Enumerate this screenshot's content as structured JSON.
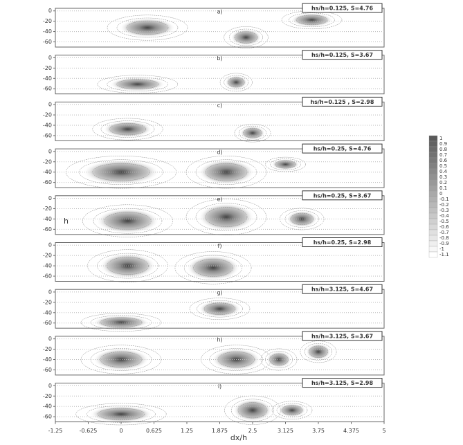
{
  "chart_data": [
    {
      "type": "contour",
      "label": "a)",
      "title": "hs/h=0.125, S=4.76",
      "xlim": [
        -1.25,
        5
      ],
      "ylim": [
        -70,
        5
      ],
      "yticks": [
        0,
        -20,
        -40,
        -60
      ]
    },
    {
      "type": "contour",
      "label": "b)",
      "title": "hs/h=0.125, S=3.67",
      "xlim": [
        -1.25,
        5
      ],
      "ylim": [
        -70,
        5
      ],
      "yticks": [
        0,
        -20,
        -40,
        -60
      ]
    },
    {
      "type": "contour",
      "label": "c)",
      "title": "hs/h=0.125 , S=2.98",
      "xlim": [
        -1.25,
        5
      ],
      "ylim": [
        -70,
        5
      ],
      "yticks": [
        0,
        -20,
        -40,
        -60
      ]
    },
    {
      "type": "contour",
      "label": "d)",
      "title": "hs/h=0.25, S=4.76",
      "xlim": [
        -1.25,
        5
      ],
      "ylim": [
        -70,
        5
      ],
      "yticks": [
        0,
        -20,
        -40,
        -60
      ]
    },
    {
      "type": "contour",
      "label": "e)",
      "title": "hs/h=0.25, S=3.67",
      "xlim": [
        -1.25,
        5
      ],
      "ylim": [
        -70,
        5
      ],
      "yticks": [
        0,
        -20,
        -40,
        -60
      ]
    },
    {
      "type": "contour",
      "label": "f)",
      "title": "hs/h=0.25, S=2.98",
      "xlim": [
        -1.25,
        5
      ],
      "ylim": [
        -70,
        5
      ],
      "yticks": [
        0,
        -20,
        -40,
        -60
      ]
    },
    {
      "type": "contour",
      "label": "g)",
      "title": "hs/h=3.125, S=4.67",
      "xlim": [
        -1.25,
        5
      ],
      "ylim": [
        -70,
        5
      ],
      "yticks": [
        0,
        -20,
        -40,
        -60
      ]
    },
    {
      "type": "contour",
      "label": "h)",
      "title": "hs/h=3.125, S=3.67",
      "xlim": [
        -1.25,
        5
      ],
      "ylim": [
        -70,
        5
      ],
      "yticks": [
        0,
        -20,
        -40,
        -60
      ]
    },
    {
      "type": "contour",
      "label": "i)",
      "title": "hs/h=3.125, S=2.98",
      "xlim": [
        -1.25,
        5
      ],
      "ylim": [
        -70,
        5
      ],
      "yticks": [
        0,
        -20,
        -40,
        -60
      ],
      "xticks": [
        -1.25,
        -0.625,
        0,
        0.625,
        1.25,
        1.875,
        2.5,
        3.125,
        3.75,
        4.375,
        5
      ]
    }
  ],
  "xlabel": "dx/h",
  "ylabel": "h",
  "colorbar": {
    "ticks": [
      1,
      0.9,
      0.8,
      0.7,
      0.6,
      0.5,
      0.4,
      0.3,
      0.2,
      0.1,
      0,
      -0.1,
      -0.2,
      -0.3,
      -0.4,
      -0.5,
      -0.6,
      -0.7,
      -0.8,
      -0.9,
      -1,
      -1.1
    ]
  }
}
